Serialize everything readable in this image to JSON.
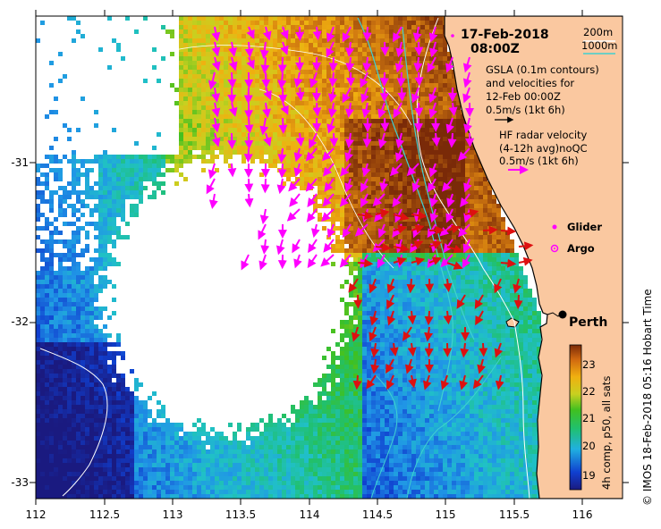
{
  "title": {
    "date": "17-Feb-2018",
    "time": "08:00Z"
  },
  "depth_contours": {
    "label_200": "200m",
    "label_1000": "1000m",
    "color_200": "#ffffff",
    "color_1000": "#40d0d0"
  },
  "gsla_legend": {
    "line1": "GSLA (0.1m contours)",
    "line2": "and velocities for",
    "line3": "12-Feb 00:00Z",
    "scale": "0.5m/s (1kt 6h)",
    "color": "#000000"
  },
  "hf_legend": {
    "line1": "HF radar velocity",
    "line2": "(4-12h avg)noQC",
    "scale": "0.5m/s (1kt 6h)",
    "color": "#ff00ff"
  },
  "symbols": {
    "glider": "Glider",
    "argo": "Argo",
    "color": "#ff00ff"
  },
  "city": {
    "name": "Perth"
  },
  "colorbar": {
    "label": "4h comp, p50, all sats",
    "ticks": [
      "23",
      "22",
      "21",
      "20",
      "19"
    ],
    "vmin": 18.5,
    "vmax": 23.6
  },
  "credit": "© IMOS 18-Feb-2018 05:16 Hobart Time",
  "axes": {
    "x_ticks": [
      "112",
      "112.5",
      "113",
      "113.5",
      "114",
      "114.5",
      "115",
      "115.5",
      "116"
    ],
    "y_ticks": [
      "-31",
      "-32",
      "-33"
    ],
    "lon_range": [
      112,
      116.3
    ],
    "lat_range": [
      -30.1,
      -33.1
    ]
  },
  "colors": {
    "land": "#fac8a0",
    "coast": "#000000",
    "hf_arrows": "#ff00ff",
    "red_arrows": "#dd1010"
  }
}
